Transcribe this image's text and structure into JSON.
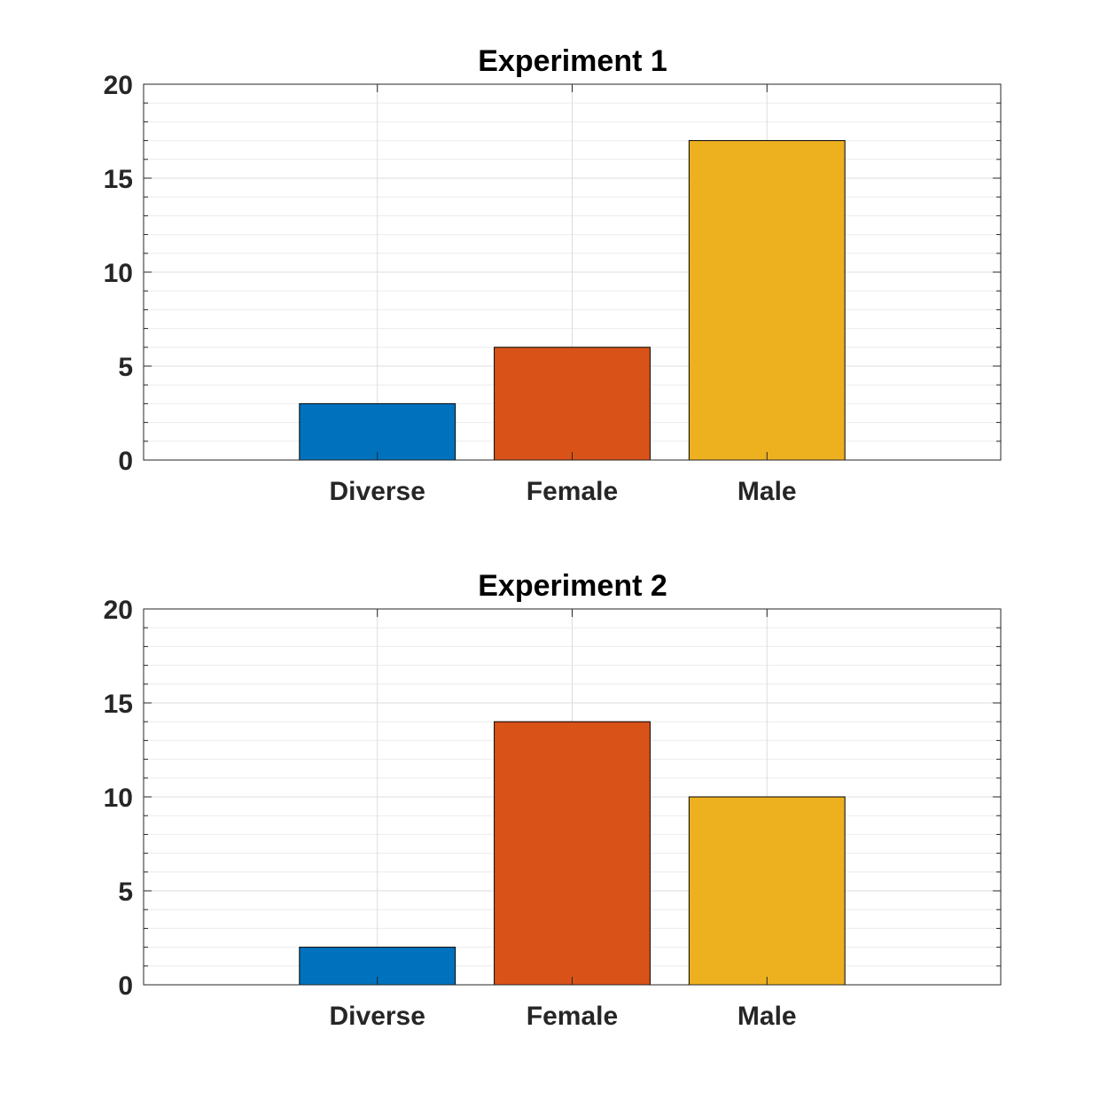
{
  "chart_data": [
    {
      "type": "bar",
      "title": "Experiment 1",
      "categories": [
        "Diverse",
        "Female",
        "Male"
      ],
      "values": [
        3,
        6,
        17
      ],
      "colors": [
        "#0072bd",
        "#d95319",
        "#edb120"
      ],
      "xlabel": "",
      "ylabel": "",
      "ylim": [
        0,
        20
      ],
      "yticks": [
        0,
        5,
        10,
        15,
        20
      ],
      "xlim": [
        -0.2,
        4.2
      ],
      "grid": true,
      "minor_grid": true
    },
    {
      "type": "bar",
      "title": "Experiment 2",
      "categories": [
        "Diverse",
        "Female",
        "Male"
      ],
      "values": [
        2,
        14,
        10
      ],
      "colors": [
        "#0072bd",
        "#d95319",
        "#edb120"
      ],
      "xlabel": "",
      "ylabel": "",
      "ylim": [
        0,
        20
      ],
      "yticks": [
        0,
        5,
        10,
        15,
        20
      ],
      "xlim": [
        -0.2,
        4.2
      ],
      "grid": true,
      "minor_grid": true
    }
  ]
}
